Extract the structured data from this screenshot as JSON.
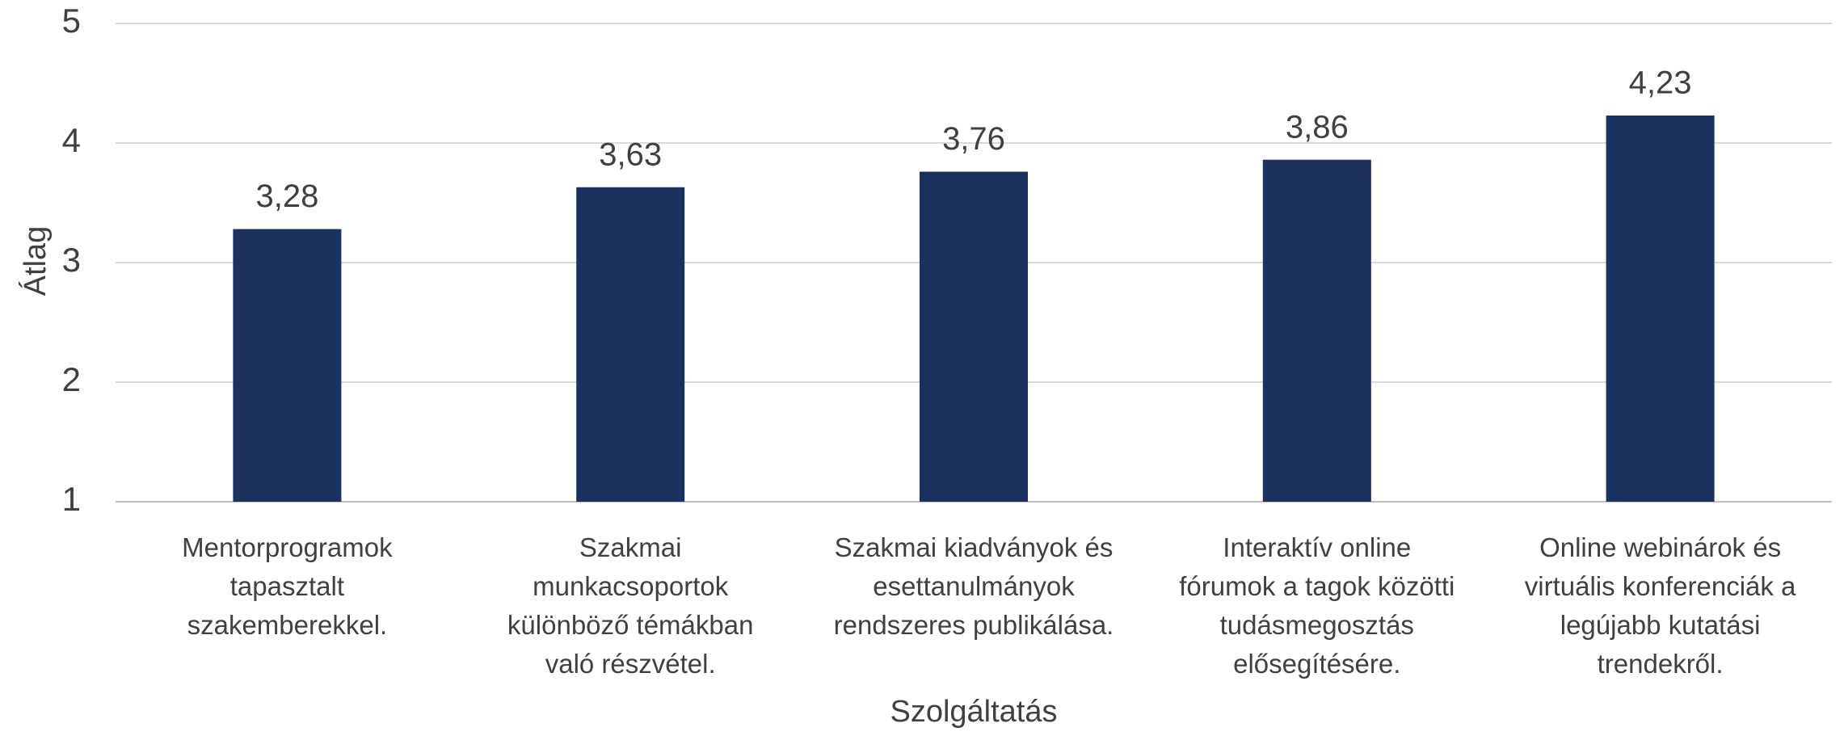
{
  "chart_data": {
    "type": "bar",
    "xlabel": "Szolgáltatás",
    "ylabel": "Átlag",
    "categories": [
      "Mentorprogramok\ntapasztalt\nszakemberekkel.",
      "Szakmai\nmunkacsoportok\nkülönböző témákban\nvaló részvétel.",
      "Szakmai kiadványok és\nesettanulmányok\nrendszeres publikálása.",
      "Interaktív online\nfórumok a tagok közötti\ntudásmegosztás\nelősegítésére.",
      "Online webinárok és\nvirtuális konferenciák a\nlegújabb kutatási\ntrendekről."
    ],
    "values": [
      3.28,
      3.63,
      3.76,
      3.86,
      4.23
    ],
    "value_labels": [
      "3,28",
      "3,63",
      "3,76",
      "3,86",
      "4,23"
    ],
    "color": "#1b3160",
    "ylim": [
      1,
      5
    ],
    "yticks": [
      1,
      2,
      3,
      4,
      5
    ],
    "grid": true
  }
}
